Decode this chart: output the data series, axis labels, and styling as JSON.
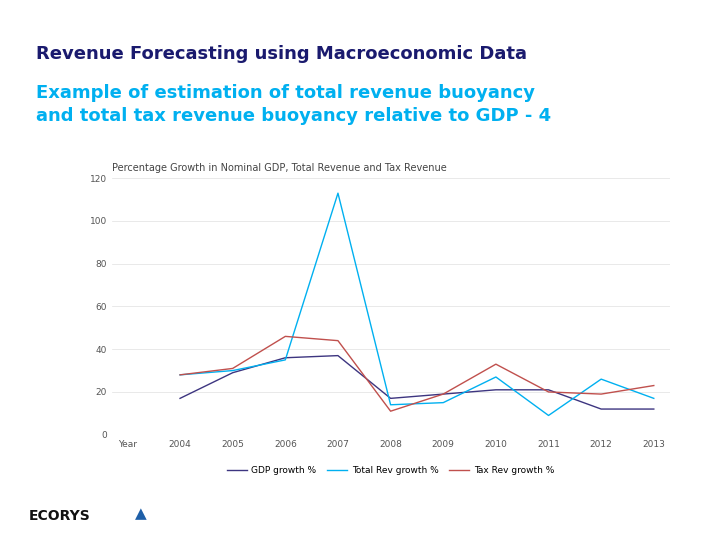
{
  "title1": "Revenue Forecasting using Macroeconomic Data",
  "title2": "Example of estimation of total revenue buoyancy\nand total tax revenue buoyancy relative to GDP - 4",
  "chart_title": "Percentage Growth in Nominal GDP, Total Revenue and Tax Revenue",
  "background_color": "#ffffff",
  "title1_color": "#1a1a6e",
  "title2_color": "#00b0f0",
  "years": [
    "Year",
    "2004",
    "2005",
    "2006",
    "2007",
    "2008",
    "2009",
    "2010",
    "2011",
    "2012",
    "2013"
  ],
  "gdp_growth": [
    null,
    17,
    29,
    36,
    37,
    17,
    19,
    21,
    21,
    12,
    12
  ],
  "total_rev_growth": [
    null,
    28,
    30,
    35,
    113,
    14,
    15,
    27,
    9,
    26,
    17
  ],
  "tax_rev_growth": [
    null,
    28,
    31,
    46,
    44,
    11,
    19,
    33,
    20,
    19,
    23
  ],
  "gdp_color": "#3d3580",
  "total_rev_color": "#00b0f0",
  "tax_rev_color": "#c0504d",
  "ylim": [
    0,
    120
  ],
  "yticks": [
    0,
    20,
    40,
    60,
    80,
    100,
    120
  ],
  "legend_gdp": "GDP growth %",
  "legend_total_rev": "Total Rev growth %",
  "legend_tax_rev": "Tax Rev growth %",
  "chart_title_fontsize": 7,
  "axis_fontsize": 6.5,
  "legend_fontsize": 6.5,
  "title1_fontsize": 13,
  "title2_fontsize": 13
}
